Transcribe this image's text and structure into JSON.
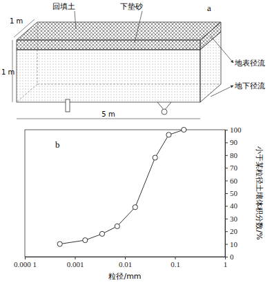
{
  "chart_data": {
    "type": "line",
    "title": "b",
    "x_label": "粒径/mm",
    "y_label": "小于某粒径土壤体积分数/%",
    "x": [
      0.0005,
      0.0016,
      0.0035,
      0.007,
      0.016,
      0.04,
      0.075,
      0.15
    ],
    "values": [
      10,
      13,
      18,
      24,
      39,
      78,
      96,
      100
    ],
    "color": "#333333",
    "marker": "circle",
    "line_style": "solid",
    "log": "x",
    "grid": false,
    "xlim": [
      0.0001,
      1
    ],
    "xticks": [
      {
        "value": 0.0001,
        "label": "0.000 1"
      },
      0.001,
      0.01,
      0.1,
      1
    ],
    "ylim": [
      0,
      100
    ],
    "yticks": [
      0,
      10,
      20,
      30,
      40,
      50,
      60,
      70,
      80,
      90,
      100
    ]
  },
  "diagram": {
    "panel": "a",
    "layers": [
      "回填土",
      "下垫砂"
    ],
    "outlets": [
      "地表径流",
      "地下径流"
    ],
    "dimensions": [
      "1 m",
      "1 m",
      "5 m"
    ]
  }
}
